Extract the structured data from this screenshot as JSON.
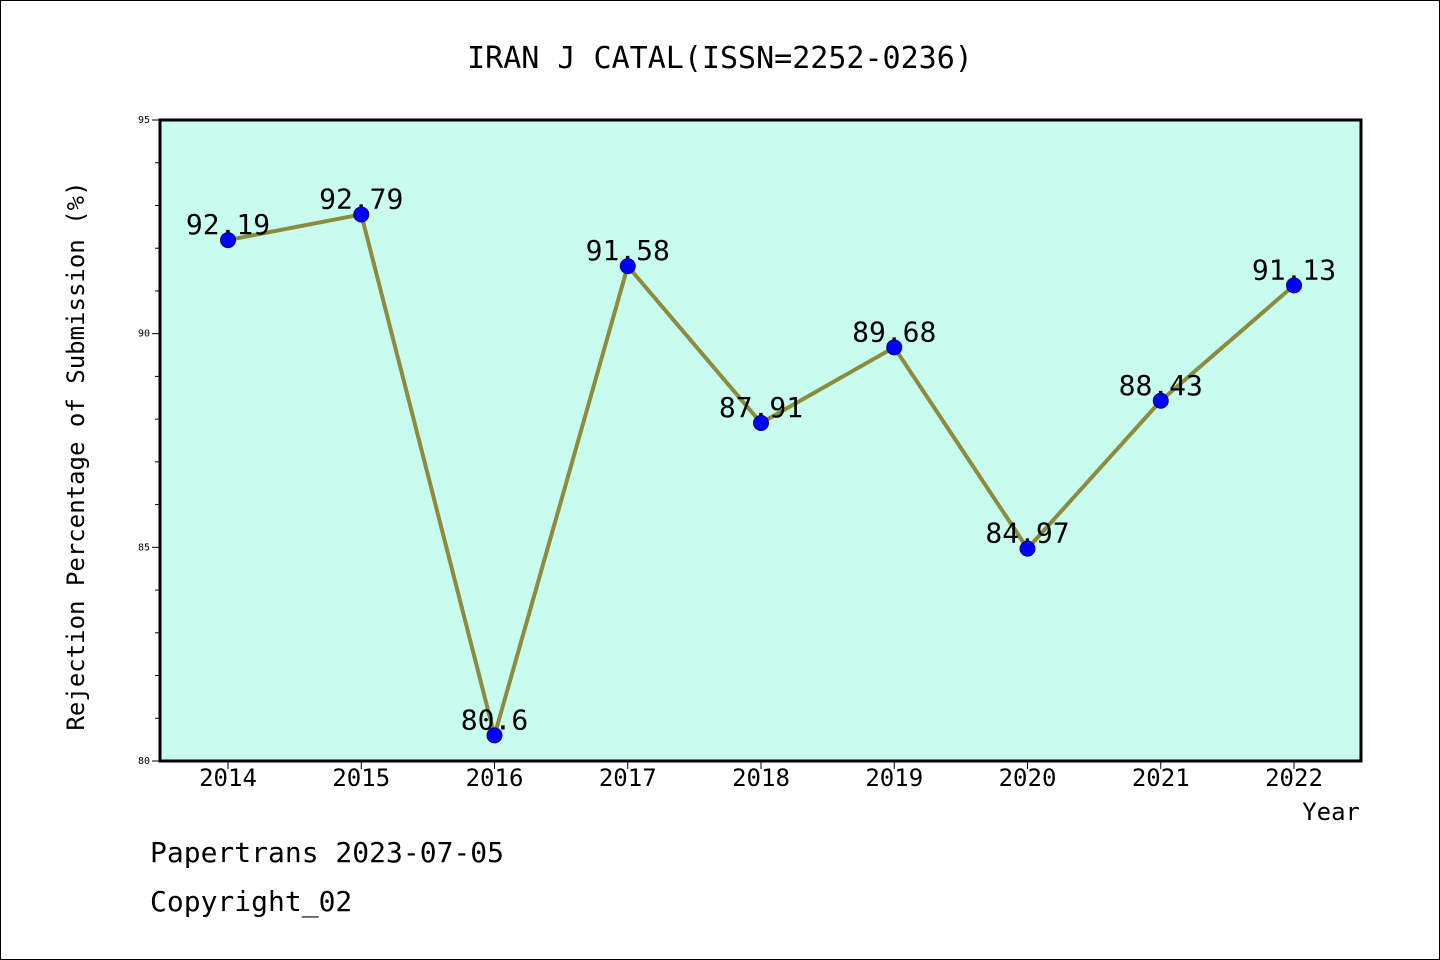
{
  "footer": {
    "watermark": "Papertrans 2023-07-05",
    "copyright": "Copyright_02"
  },
  "chart_data": {
    "type": "line",
    "title": "IRAN J CATAL(ISSN=2252-0236)",
    "xlabel": "Year",
    "ylabel": "Rejection Percentage of Submission (%)",
    "categories": [
      "2014",
      "2015",
      "2016",
      "2017",
      "2018",
      "2019",
      "2020",
      "2021",
      "2022"
    ],
    "series": [
      {
        "values": [
          92.19,
          92.79,
          80.6,
          91.58,
          87.91,
          89.68,
          84.97,
          88.43,
          91.13
        ],
        "data_labels": [
          "92.19",
          "92.79",
          "80.6",
          "91.58",
          "87.91",
          "89.68",
          "84.97",
          "88.43",
          "91.13"
        ]
      }
    ],
    "ylim": [
      80,
      95
    ],
    "yticks": [
      80,
      85,
      90,
      95
    ],
    "ytick_labels": [
      "80",
      "85",
      "90",
      "95"
    ],
    "minor_ytick_step": 1,
    "grid": false,
    "colors": {
      "plot_background": "#c8fcee",
      "line": "#8c8c3c",
      "marker": "#0000ff",
      "axes": "#000000"
    }
  }
}
